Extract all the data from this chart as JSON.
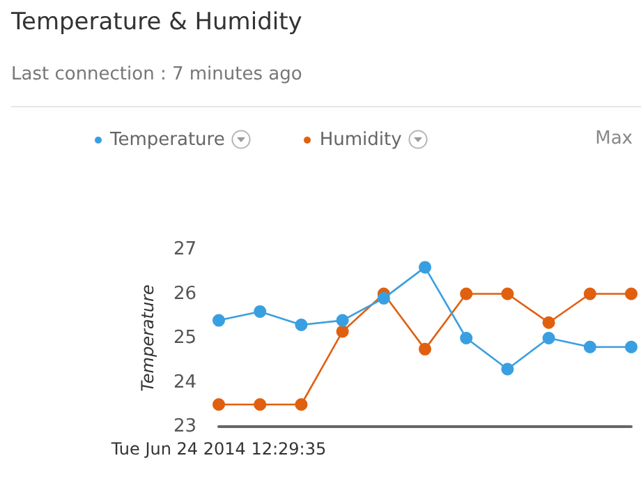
{
  "chart_data": {
    "type": "line",
    "title": "Temperature & Humidity",
    "subtitle": "Last connection : 7 minutes ago",
    "ylabel": "Temperature",
    "annotations": [
      "Max"
    ],
    "categories": [
      "Tue Jun 24 2014 12:29:35",
      null,
      null,
      null,
      null,
      null,
      null,
      null,
      null,
      null,
      null
    ],
    "series": [
      {
        "name": "Temperature",
        "color": "#3a9fe0",
        "values": [
          25.4,
          25.6,
          25.3,
          25.4,
          25.9,
          26.6,
          25.0,
          24.3,
          25.0,
          24.8,
          24.8
        ]
      },
      {
        "name": "Humidity",
        "color": "#e0600f",
        "values": [
          23.5,
          23.5,
          23.5,
          25.15,
          26.0,
          24.75,
          26.0,
          26.0,
          25.35,
          26.0,
          26.0
        ]
      }
    ],
    "ylim": [
      23,
      27
    ],
    "yticks": [
      23,
      24,
      25,
      26,
      27
    ],
    "grid": false,
    "legend": "top",
    "marker": "circle",
    "line_style": "solid"
  }
}
